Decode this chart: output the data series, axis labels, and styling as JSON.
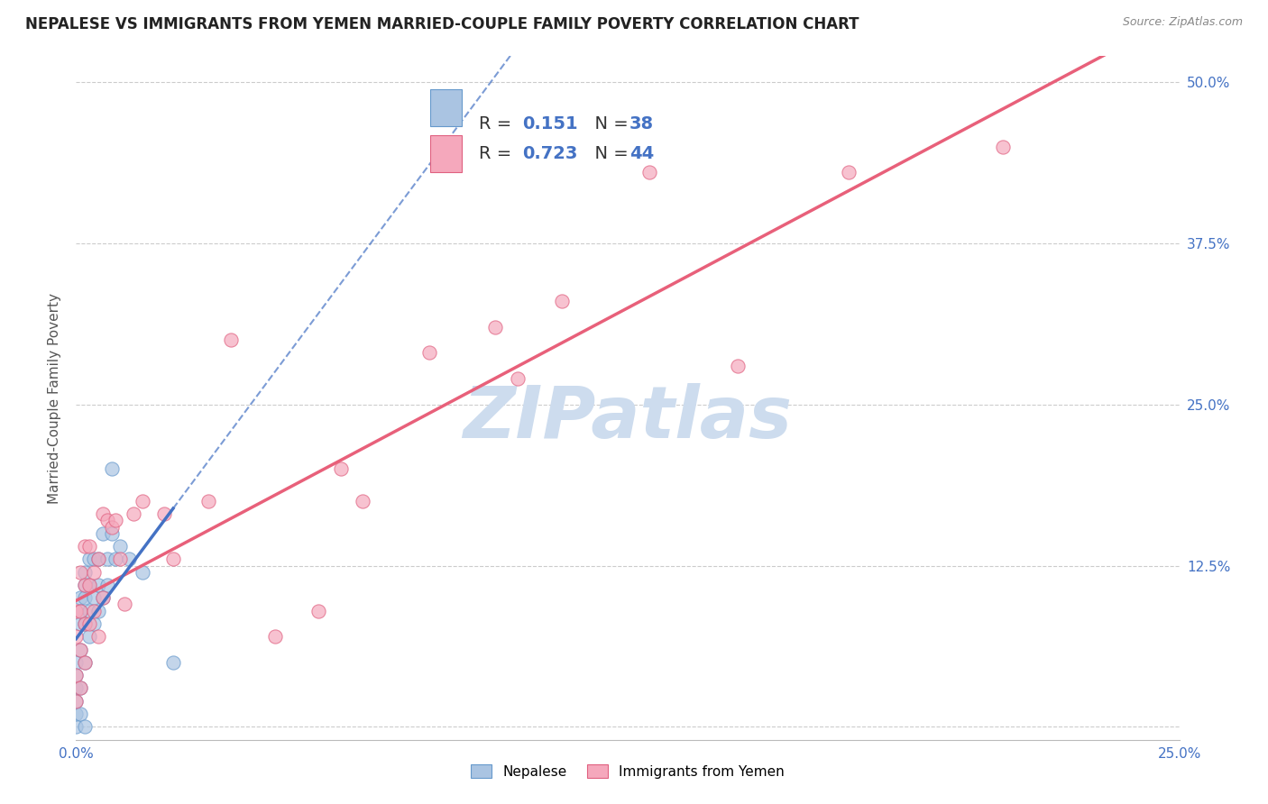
{
  "title": "NEPALESE VS IMMIGRANTS FROM YEMEN MARRIED-COUPLE FAMILY POVERTY CORRELATION CHART",
  "source": "Source: ZipAtlas.com",
  "ylabel": "Married-Couple Family Poverty",
  "x_min": 0.0,
  "x_max": 0.25,
  "y_min": -0.01,
  "y_max": 0.52,
  "x_ticks": [
    0.0,
    0.05,
    0.1,
    0.15,
    0.2,
    0.25
  ],
  "x_tick_labels": [
    "0.0%",
    "",
    "",
    "",
    "",
    "25.0%"
  ],
  "y_ticks": [
    0.0,
    0.125,
    0.25,
    0.375,
    0.5
  ],
  "y_tick_labels": [
    "",
    "12.5%",
    "25.0%",
    "37.5%",
    "50.0%"
  ],
  "nepalese_color": "#aac4e2",
  "nepalese_edge_color": "#6699cc",
  "yemen_color": "#f5a8bc",
  "yemen_edge_color": "#e06080",
  "nepalese_line_color": "#4472c4",
  "yemen_line_color": "#e8607a",
  "legend_R1": "0.151",
  "legend_N1": "38",
  "legend_R2": "0.723",
  "legend_N2": "44",
  "nepalese_x": [
    0.0,
    0.0,
    0.0,
    0.0,
    0.0,
    0.0,
    0.001,
    0.001,
    0.001,
    0.001,
    0.001,
    0.001,
    0.002,
    0.002,
    0.002,
    0.002,
    0.002,
    0.003,
    0.003,
    0.003,
    0.003,
    0.004,
    0.004,
    0.004,
    0.005,
    0.005,
    0.005,
    0.006,
    0.006,
    0.007,
    0.007,
    0.008,
    0.008,
    0.009,
    0.01,
    0.012,
    0.015,
    0.022,
    0.002
  ],
  "nepalese_y": [
    0.0,
    0.01,
    0.02,
    0.03,
    0.04,
    0.05,
    0.01,
    0.03,
    0.06,
    0.08,
    0.09,
    0.1,
    0.05,
    0.08,
    0.1,
    0.11,
    0.12,
    0.07,
    0.09,
    0.11,
    0.13,
    0.08,
    0.1,
    0.13,
    0.09,
    0.11,
    0.13,
    0.1,
    0.15,
    0.11,
    0.13,
    0.15,
    0.2,
    0.13,
    0.14,
    0.13,
    0.12,
    0.05,
    0.0
  ],
  "yemen_x": [
    0.0,
    0.0,
    0.0,
    0.0,
    0.001,
    0.001,
    0.001,
    0.001,
    0.002,
    0.002,
    0.002,
    0.002,
    0.003,
    0.003,
    0.003,
    0.004,
    0.004,
    0.005,
    0.005,
    0.006,
    0.006,
    0.007,
    0.008,
    0.009,
    0.01,
    0.011,
    0.013,
    0.015,
    0.02,
    0.022,
    0.03,
    0.035,
    0.045,
    0.055,
    0.06,
    0.065,
    0.08,
    0.095,
    0.1,
    0.11,
    0.13,
    0.15,
    0.175,
    0.21
  ],
  "yemen_y": [
    0.02,
    0.04,
    0.07,
    0.09,
    0.03,
    0.06,
    0.09,
    0.12,
    0.05,
    0.08,
    0.11,
    0.14,
    0.08,
    0.11,
    0.14,
    0.09,
    0.12,
    0.07,
    0.13,
    0.1,
    0.165,
    0.16,
    0.155,
    0.16,
    0.13,
    0.095,
    0.165,
    0.175,
    0.165,
    0.13,
    0.175,
    0.3,
    0.07,
    0.09,
    0.2,
    0.175,
    0.29,
    0.31,
    0.27,
    0.33,
    0.43,
    0.28,
    0.43,
    0.45
  ],
  "background_color": "#ffffff",
  "grid_color": "#cccccc",
  "watermark": "ZIPatlas",
  "watermark_color": "#cddcee"
}
